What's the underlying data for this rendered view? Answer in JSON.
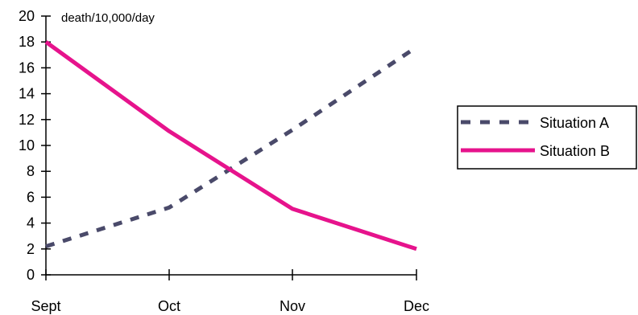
{
  "chart_data": {
    "type": "line",
    "categories": [
      "Sept",
      "Oct",
      "Nov",
      "Dec"
    ],
    "unit_label": "death/10,000/day",
    "ylim": [
      0,
      20
    ],
    "yticks": [
      0,
      2,
      4,
      6,
      8,
      10,
      12,
      14,
      16,
      18,
      20
    ],
    "grid": false,
    "legend_position": "right",
    "series": [
      {
        "name": "Situation A",
        "values": [
          2.2,
          5.2,
          11.2,
          17.6
        ],
        "color": "#4a4a6a",
        "style": "dashed"
      },
      {
        "name": "Situation B",
        "values": [
          18.0,
          11.1,
          5.1,
          2.0
        ],
        "color": "#e6138c",
        "style": "solid"
      }
    ]
  }
}
